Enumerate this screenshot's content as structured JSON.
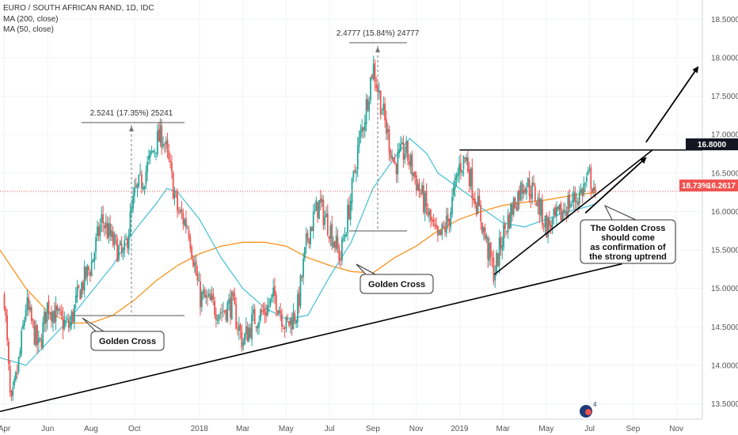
{
  "header": {
    "title": "EURO / SOUTH AFRICAN RAND, 1D, IDC",
    "indicator_1": "MA (200, close)",
    "indicator_2": "MA (50, close)"
  },
  "x_axis": {
    "ticks": [
      {
        "label": "Apr",
        "t": 0
      },
      {
        "label": "Jun",
        "t": 2
      },
      {
        "label": "Aug",
        "t": 4
      },
      {
        "label": "Oct",
        "t": 6
      },
      {
        "label": "2018",
        "t": 9
      },
      {
        "label": "Mar",
        "t": 11
      },
      {
        "label": "May",
        "t": 13
      },
      {
        "label": "Jul",
        "t": 15
      },
      {
        "label": "Sep",
        "t": 17
      },
      {
        "label": "Nov",
        "t": 19
      },
      {
        "label": "2019",
        "t": 21
      },
      {
        "label": "Mar",
        "t": 23
      },
      {
        "label": "May",
        "t": 25
      },
      {
        "label": "Jul",
        "t": 27
      },
      {
        "label": "Sep",
        "t": 29
      },
      {
        "label": "Nov",
        "t": 31
      }
    ]
  },
  "y_axis": {
    "ticks": [
      "18.5000",
      "18.0000",
      "17.5000",
      "17.0000",
      "16.5000",
      "16.0000",
      "15.5000",
      "15.0000",
      "14.5000",
      "14.0000",
      "13.5000"
    ],
    "price_badge": "16.8000",
    "current_badge_pct": "18.73%",
    "current_badge_price": "16.2617"
  },
  "annotations": {
    "measure_1": "2.5241 (17.35%) 25241",
    "measure_2": "2.4777 (15.84%) 24777",
    "golden_cross_1": "Golden Cross",
    "golden_cross_2": "Golden Cross",
    "callout_lines": [
      "The Golden Cross",
      "should come",
      "as confirmation of",
      "the strong uptrend"
    ],
    "logo_superscript": "4"
  },
  "colors": {
    "up": "#26a69a",
    "down": "#ef5350",
    "ma200": "#f7931e",
    "ma50": "#4fc3d9",
    "current_line": "#ef5350",
    "badge_dark": "#131722",
    "badge_current": "#ef5350"
  },
  "chart_data": {
    "type": "candlestick",
    "x_unit": "months since Apr 2017",
    "y_unit": "EUR/ZAR price",
    "ylim": [
      13.3,
      18.75
    ],
    "xlim": [
      -0.2,
      32.2
    ],
    "price_anchors": [
      [
        0.0,
        14.9
      ],
      [
        0.3,
        13.4
      ],
      [
        0.7,
        14.1
      ],
      [
        1.0,
        14.8
      ],
      [
        1.3,
        14.5
      ],
      [
        1.6,
        14.2
      ],
      [
        2.0,
        14.8
      ],
      [
        2.5,
        14.6
      ],
      [
        3.0,
        14.5
      ],
      [
        3.5,
        15.0
      ],
      [
        4.0,
        15.3
      ],
      [
        4.5,
        15.9
      ],
      [
        5.0,
        15.6
      ],
      [
        5.5,
        15.4
      ],
      [
        6.0,
        16.2
      ],
      [
        6.5,
        16.5
      ],
      [
        7.0,
        16.9
      ],
      [
        7.3,
        17.0
      ],
      [
        7.6,
        16.6
      ],
      [
        8.0,
        16.0
      ],
      [
        8.5,
        15.8
      ],
      [
        9.0,
        14.9
      ],
      [
        9.5,
        14.8
      ],
      [
        10.0,
        14.7
      ],
      [
        10.5,
        14.8
      ],
      [
        11.0,
        14.3
      ],
      [
        11.5,
        14.6
      ],
      [
        12.0,
        14.7
      ],
      [
        12.5,
        14.9
      ],
      [
        13.0,
        14.5
      ],
      [
        13.5,
        14.7
      ],
      [
        14.0,
        15.7
      ],
      [
        14.5,
        16.1
      ],
      [
        15.0,
        15.8
      ],
      [
        15.5,
        15.4
      ],
      [
        16.0,
        16.2
      ],
      [
        16.3,
        16.8
      ],
      [
        16.6,
        17.2
      ],
      [
        17.0,
        17.9
      ],
      [
        17.3,
        17.5
      ],
      [
        17.6,
        17.1
      ],
      [
        18.0,
        16.6
      ],
      [
        18.5,
        16.8
      ],
      [
        19.0,
        16.4
      ],
      [
        19.5,
        16.0
      ],
      [
        20.0,
        15.6
      ],
      [
        20.5,
        15.9
      ],
      [
        21.0,
        16.6
      ],
      [
        21.3,
        16.7
      ],
      [
        21.6,
        16.3
      ],
      [
        22.0,
        15.9
      ],
      [
        22.3,
        15.5
      ],
      [
        22.6,
        15.2
      ],
      [
        23.0,
        15.7
      ],
      [
        23.5,
        16.1
      ],
      [
        24.0,
        16.4
      ],
      [
        24.5,
        16.2
      ],
      [
        25.0,
        15.8
      ],
      [
        25.5,
        15.9
      ],
      [
        26.0,
        16.1
      ],
      [
        26.5,
        16.2
      ],
      [
        27.0,
        16.45
      ],
      [
        27.3,
        16.26
      ]
    ],
    "ma200_points": [
      [
        -0.2,
        15.5
      ],
      [
        1.0,
        15.0
      ],
      [
        2.0,
        14.7
      ],
      [
        3.0,
        14.55
      ],
      [
        4.0,
        14.55
      ],
      [
        5.0,
        14.65
      ],
      [
        6.0,
        14.85
      ],
      [
        7.0,
        15.1
      ],
      [
        8.0,
        15.3
      ],
      [
        9.0,
        15.45
      ],
      [
        10.0,
        15.55
      ],
      [
        11.0,
        15.6
      ],
      [
        12.0,
        15.6
      ],
      [
        13.0,
        15.55
      ],
      [
        14.0,
        15.4
      ],
      [
        15.0,
        15.3
      ],
      [
        16.0,
        15.22
      ],
      [
        17.0,
        15.2
      ],
      [
        18.0,
        15.4
      ],
      [
        19.0,
        15.55
      ],
      [
        20.0,
        15.75
      ],
      [
        21.0,
        15.9
      ],
      [
        22.0,
        16.0
      ],
      [
        23.0,
        16.08
      ],
      [
        24.0,
        16.12
      ],
      [
        25.0,
        16.15
      ],
      [
        26.0,
        16.2
      ],
      [
        27.3,
        16.25
      ]
    ],
    "ma50_points": [
      [
        -0.2,
        14.1
      ],
      [
        1.0,
        14.0
      ],
      [
        2.0,
        14.3
      ],
      [
        3.0,
        14.6
      ],
      [
        4.0,
        14.95
      ],
      [
        5.0,
        15.3
      ],
      [
        6.0,
        15.75
      ],
      [
        7.0,
        16.1
      ],
      [
        7.5,
        16.3
      ],
      [
        8.0,
        16.25
      ],
      [
        9.0,
        15.9
      ],
      [
        10.0,
        15.4
      ],
      [
        11.0,
        15.0
      ],
      [
        12.0,
        14.75
      ],
      [
        13.0,
        14.6
      ],
      [
        14.0,
        14.65
      ],
      [
        15.0,
        15.15
      ],
      [
        16.0,
        15.6
      ],
      [
        17.0,
        16.3
      ],
      [
        18.0,
        16.7
      ],
      [
        18.7,
        16.95
      ],
      [
        19.5,
        16.75
      ],
      [
        20.0,
        16.5
      ],
      [
        21.0,
        16.3
      ],
      [
        21.5,
        16.2
      ],
      [
        22.0,
        16.05
      ],
      [
        23.0,
        15.85
      ],
      [
        24.0,
        15.8
      ],
      [
        25.0,
        15.9
      ],
      [
        26.0,
        16.0
      ],
      [
        26.7,
        16.05
      ],
      [
        27.3,
        16.1
      ]
    ],
    "trendlines": [
      {
        "name": "long-term-support",
        "from": [
          -0.2,
          13.4
        ],
        "to": [
          28.5,
          15.32
        ]
      },
      {
        "name": "triangle-support",
        "from": [
          22.6,
          15.18
        ],
        "to": [
          29.9,
          16.8
        ]
      },
      {
        "name": "triangle-resistance",
        "from": [
          21.0,
          16.8
        ],
        "to": [
          32.2,
          16.8
        ]
      },
      {
        "name": "target-arrow-1",
        "from": [
          26.8,
          15.98
        ],
        "to": [
          29.6,
          16.7
        ]
      },
      {
        "name": "target-arrow-2",
        "from": [
          29.6,
          16.9
        ],
        "to": [
          32.0,
          17.88
        ]
      }
    ],
    "current_price": 16.2617,
    "resistance_level": 16.8
  }
}
